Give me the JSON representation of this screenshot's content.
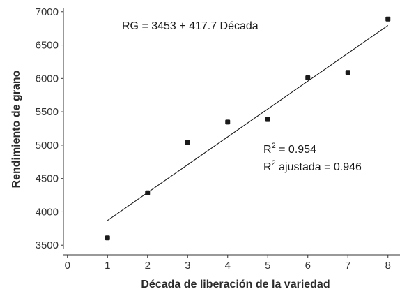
{
  "chart_data": {
    "type": "scatter",
    "xlabel": "Década de liberación de la variedad",
    "ylabel": "Rendimiento de grano",
    "xlim": [
      -0.1,
      8.3
    ],
    "ylim": [
      3450,
      7050
    ],
    "x_ticks": [
      0,
      1,
      2,
      3,
      4,
      5,
      6,
      7,
      8
    ],
    "y_ticks": [
      3500,
      4000,
      4500,
      5000,
      5500,
      6000,
      6500,
      7000
    ],
    "grid": false,
    "legend": "none",
    "series": [
      {
        "type": "scatter",
        "x": [
          1,
          2,
          3,
          4,
          5,
          6,
          7,
          8
        ],
        "y": [
          3610,
          4285,
          5040,
          5345,
          5385,
          6010,
          6090,
          6890
        ],
        "color": "#1a1a1a"
      }
    ],
    "fit": {
      "type": "line",
      "intercept": 3453,
      "slope": 417.7,
      "x_range": [
        1,
        8
      ],
      "color": "#1a1a1a"
    },
    "annotations": {
      "equation": "RG = 3453 + 417.7 Década",
      "r2": "0.954",
      "r2_adj_label": "ajustada",
      "r2_adj": "0.946"
    }
  }
}
